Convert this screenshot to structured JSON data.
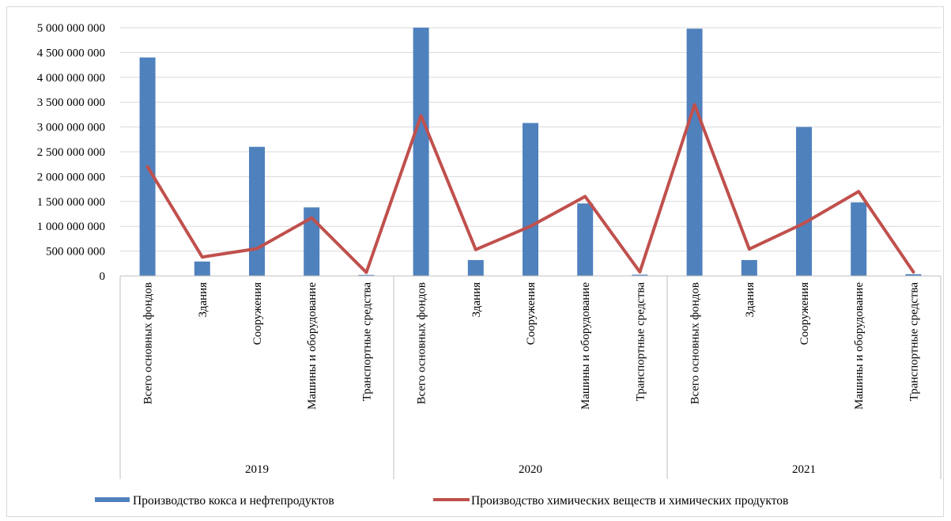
{
  "chart_data": {
    "type": "bar",
    "title": "",
    "xlabel": "",
    "ylabel": "",
    "ylim": [
      0,
      5000000000
    ],
    "yticks": [
      0,
      500000000,
      1000000000,
      1500000000,
      2000000000,
      2500000000,
      3000000000,
      3500000000,
      4000000000,
      4500000000,
      5000000000
    ],
    "ytick_labels": [
      "0",
      "500 000 000",
      "1 000 000 000",
      "1 500 000 000",
      "2 000 000 000",
      "2 500 000 000",
      "3 000 000 000",
      "3 500 000 000",
      "4 000 000 000",
      "4 500 000 000",
      "5 000 000 000"
    ],
    "grid": true,
    "legend_position": "bottom",
    "groups": [
      {
        "label": "2019",
        "categories": [
          "Всего основных фондов",
          "Здания",
          "Сооружения",
          "Машины и оборудование",
          "Транспортные средства"
        ]
      },
      {
        "label": "2020",
        "categories": [
          "Всего основных фондов",
          "Здания",
          "Сооружения",
          "Машины и оборудование",
          "Транспортные средства"
        ]
      },
      {
        "label": "2021",
        "categories": [
          "Всего основных фондов",
          "Здания",
          "Сооружения",
          "Машины и оборудование",
          "Транспортные средства"
        ]
      }
    ],
    "series": [
      {
        "name": "Производство кокса и нефтепродуктов",
        "kind": "bar",
        "color": "#4f81bd",
        "values": [
          4400000000,
          290000000,
          2600000000,
          1380000000,
          20000000,
          5000000000,
          320000000,
          3080000000,
          1460000000,
          25000000,
          4980000000,
          320000000,
          3000000000,
          1480000000,
          35000000
        ]
      },
      {
        "name": "Производство химических веществ и химических продуктов",
        "kind": "line",
        "color": "#c0504d",
        "values": [
          2200000000,
          380000000,
          550000000,
          1170000000,
          70000000,
          3230000000,
          530000000,
          1000000000,
          1600000000,
          80000000,
          3450000000,
          540000000,
          1060000000,
          1700000000,
          80000000
        ]
      }
    ]
  }
}
